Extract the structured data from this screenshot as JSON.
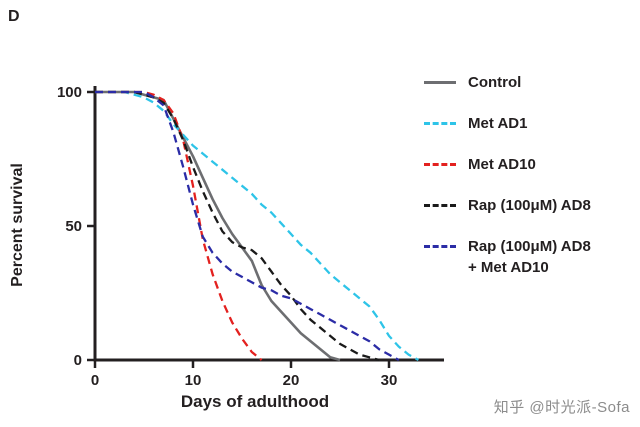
{
  "panel": {
    "label": "D"
  },
  "watermark": {
    "text": "知乎 @时光派-Sofa"
  },
  "chart_data": {
    "type": "line",
    "title": "",
    "xlabel": "Days of adulthood",
    "ylabel": "Percent survival",
    "xlim": [
      0,
      35
    ],
    "ylim": [
      0,
      100
    ],
    "xticks": [
      0,
      10,
      20,
      30
    ],
    "yticks": [
      0,
      50,
      100
    ],
    "grid": false,
    "legend_position": "right",
    "series": [
      {
        "name": "Control",
        "legend_lines": [
          "Control"
        ],
        "color": "#6d6e71",
        "style": "solid",
        "points": [
          [
            0,
            100
          ],
          [
            2,
            100
          ],
          [
            4,
            100
          ],
          [
            5,
            99
          ],
          [
            6,
            98
          ],
          [
            7,
            97
          ],
          [
            8,
            90
          ],
          [
            9,
            83
          ],
          [
            10,
            76
          ],
          [
            11,
            68
          ],
          [
            12,
            60
          ],
          [
            13,
            53
          ],
          [
            14,
            47
          ],
          [
            15,
            42
          ],
          [
            16,
            37
          ],
          [
            17,
            28
          ],
          [
            18,
            22
          ],
          [
            19,
            18
          ],
          [
            20,
            14
          ],
          [
            21,
            10
          ],
          [
            22,
            7
          ],
          [
            23,
            4
          ],
          [
            24,
            1
          ],
          [
            25,
            0
          ]
        ]
      },
      {
        "name": "Met AD1",
        "legend_lines": [
          "Met AD1"
        ],
        "color": "#2ec4e8",
        "style": "dashed",
        "points": [
          [
            0,
            100
          ],
          [
            3,
            100
          ],
          [
            5,
            98
          ],
          [
            6,
            96
          ],
          [
            7,
            93
          ],
          [
            8,
            88
          ],
          [
            9,
            84
          ],
          [
            10,
            80
          ],
          [
            11,
            77
          ],
          [
            12,
            74
          ],
          [
            13,
            71
          ],
          [
            14,
            68
          ],
          [
            15,
            65
          ],
          [
            16,
            62
          ],
          [
            17,
            58
          ],
          [
            18,
            55
          ],
          [
            19,
            51
          ],
          [
            20,
            47
          ],
          [
            21,
            43
          ],
          [
            22,
            40
          ],
          [
            23,
            36
          ],
          [
            24,
            32
          ],
          [
            25,
            29
          ],
          [
            26,
            26
          ],
          [
            27,
            23
          ],
          [
            28,
            20
          ],
          [
            29,
            15
          ],
          [
            30,
            9
          ],
          [
            31,
            5
          ],
          [
            32,
            2
          ],
          [
            33,
            0
          ]
        ]
      },
      {
        "name": "Met AD10",
        "legend_lines": [
          "Met AD10"
        ],
        "color": "#e3211f",
        "style": "dashed",
        "points": [
          [
            0,
            100
          ],
          [
            5,
            100
          ],
          [
            6,
            99
          ],
          [
            7,
            97
          ],
          [
            8,
            92
          ],
          [
            9,
            82
          ],
          [
            10,
            65
          ],
          [
            11,
            45
          ],
          [
            12,
            32
          ],
          [
            13,
            22
          ],
          [
            14,
            14
          ],
          [
            15,
            8
          ],
          [
            16,
            3
          ],
          [
            17,
            0
          ]
        ]
      },
      {
        "name": "Rap (100μM) AD8",
        "legend_lines": [
          "Rap (100μM) AD8"
        ],
        "color": "#1a1a1a",
        "style": "dashed",
        "points": [
          [
            0,
            100
          ],
          [
            4,
            100
          ],
          [
            5,
            99
          ],
          [
            6,
            98
          ],
          [
            7,
            96
          ],
          [
            8,
            90
          ],
          [
            9,
            82
          ],
          [
            10,
            72
          ],
          [
            11,
            63
          ],
          [
            12,
            55
          ],
          [
            13,
            48
          ],
          [
            14,
            44
          ],
          [
            15,
            42
          ],
          [
            16,
            41
          ],
          [
            17,
            38
          ],
          [
            18,
            33
          ],
          [
            19,
            28
          ],
          [
            20,
            24
          ],
          [
            21,
            19
          ],
          [
            22,
            15
          ],
          [
            23,
            12
          ],
          [
            24,
            9
          ],
          [
            25,
            6
          ],
          [
            26,
            4
          ],
          [
            27,
            2
          ],
          [
            28,
            1
          ],
          [
            29,
            0
          ]
        ]
      },
      {
        "name": "Rap (100μM) AD8 + Met AD10",
        "legend_lines": [
          "Rap (100μM) AD8",
          "+ Met AD10"
        ],
        "color": "#2b2ca6",
        "style": "dashed",
        "points": [
          [
            0,
            100
          ],
          [
            5,
            100
          ],
          [
            6,
            98
          ],
          [
            7,
            95
          ],
          [
            8,
            85
          ],
          [
            9,
            72
          ],
          [
            10,
            58
          ],
          [
            11,
            46
          ],
          [
            12,
            40
          ],
          [
            13,
            36
          ],
          [
            14,
            33
          ],
          [
            15,
            31
          ],
          [
            16,
            29
          ],
          [
            17,
            27
          ],
          [
            18,
            26
          ],
          [
            19,
            24
          ],
          [
            20,
            23
          ],
          [
            21,
            21
          ],
          [
            22,
            19
          ],
          [
            23,
            17
          ],
          [
            24,
            15
          ],
          [
            25,
            13
          ],
          [
            26,
            11
          ],
          [
            27,
            9
          ],
          [
            28,
            7
          ],
          [
            29,
            4
          ],
          [
            30,
            2
          ],
          [
            31,
            0
          ]
        ]
      }
    ]
  }
}
